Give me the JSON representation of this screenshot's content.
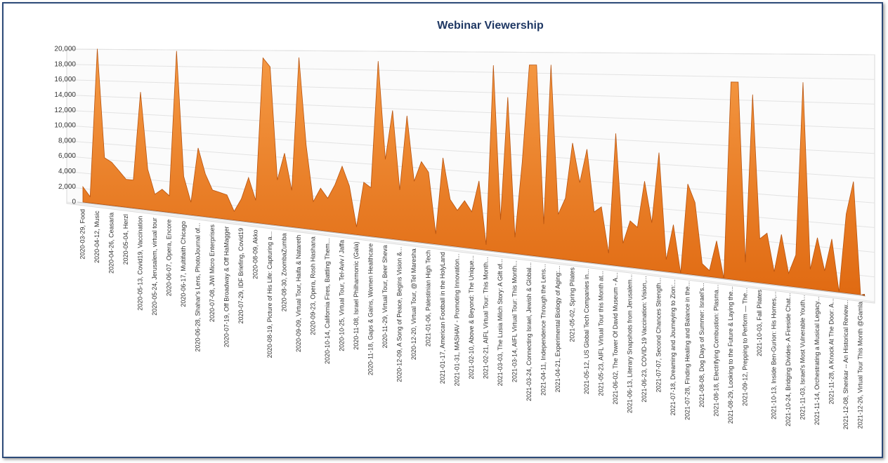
{
  "chart_data": {
    "type": "area",
    "title": "Webinar  Viewership",
    "categories": [
      "2020-03-29, Food",
      null,
      "2020-04-12, Music",
      null,
      "2020-04-26, Ceasaria",
      null,
      "2020-05-04, Herzl",
      null,
      "2020-05-13, Covid19, Vaccination",
      null,
      "2020-05-24, Jerusalem, virtual tour",
      null,
      "2020-06-07, Opera, Encore",
      null,
      "2020-06-17, Multifaith Chicago",
      null,
      "2020-06-28, Shahar's Lens, PhotoJournal of...",
      null,
      "2020-07-08, JWI Micro Enterprises",
      null,
      "2020-07-19, Off Broadway & Off HaMagger",
      null,
      "2020-07-29, IDF Briefing, Covid19",
      null,
      "2020-08-09, Akko",
      null,
      "2020-08-19, Picture of His Life: Capturing a...",
      null,
      "2020-08-30, ZoombaZumba",
      null,
      "2020-09-09, Virtual Tour, Haifa & Natareth",
      null,
      "2020-09-23, Opera, Rosh Hashana",
      null,
      "2020-10-14, California Fires, Battling Them...",
      null,
      "2020-10-25, Virtual Tour, Tel-Aviv / Jaffa",
      null,
      "2020-11-08, Israel Philharmonic (Gala)",
      null,
      "2020-11-18, Gaps & Gains, Women Healthcare",
      null,
      "2020-11-29, Virtual Tour, Beer Sheva",
      null,
      "2020-12-09, A Song of Peace, Begins Vision &...",
      null,
      "2020-12-20, Virtual Tour, @Tel Maresha",
      null,
      "2021-01-06, Palestinian High Tech",
      null,
      "2021-01-17, American Football in the HolyLand",
      null,
      "2021-01-31, MASHAV - Promoting Innovation...",
      null,
      "2021-02-10, Above & Beyond: The Unique...",
      null,
      "2021-02-21, AIFL Virtual Tour: This Month...",
      null,
      "2021-03-03, The Lusia Milch Story: A Gift of...",
      null,
      "2021-03-14, AIFL Virtual Tour: This Month...",
      null,
      "2021-03-24, Connecting Israel, Jewish & Global...",
      null,
      "2021-04-11, Independence Through the Lens...",
      null,
      "2021-04-21, Experimental Biology of Aging:...",
      null,
      "2021-05-02, Spring Pilates",
      null,
      "2021-05-12, US Global Tech Companies in...",
      null,
      "2021-05-23, AIFL Virtual Tour this Month at...",
      null,
      "2021-06-02, The Tower Of David Museum - A...",
      null,
      "2021-06-13, Literary Snapshots from Jerusalem...",
      null,
      "2021-06-23, COVID-19 Vaccination: Vision,...",
      null,
      "2021-07-07, Second Chances Strength...",
      null,
      "2021-07-18, Dreaming and Journeying to Zion:...",
      null,
      "2021-07-28, Finding Healing and Balance in the...",
      null,
      "2021-08-08, Dog Days of Summer: Israel's...",
      null,
      "2021-08-18, Electrifying Combustion: Plasma...",
      null,
      "2021-08-29, Looking to the Future & Laying the...",
      null,
      "2021-09-12, Prepping to Perform — The...",
      null,
      "2021-10-03, Fall Pilates",
      null,
      "2021-10-13, Inside Ben-Gurion: His Homes,...",
      null,
      "2021-10-24, Bridging Divides- A Fireside Chat...",
      null,
      "2021-11-03, Israel's Most Vulnerable Youth...",
      null,
      "2021-11-14, Orchestrating a Musical Legacy...",
      null,
      "2021-11-28, A Knock At The Door: A...",
      null,
      "2021-12-08, Shenkar -- An Historical Review...",
      null,
      "2021-12-26, Virtual Tour This Month @Gamla"
    ],
    "values": [
      2000,
      800,
      20000,
      6000,
      5500,
      4500,
      3500,
      3500,
      14500,
      5000,
      2000,
      2700,
      2000,
      19500,
      4500,
      1500,
      8000,
      5000,
      3200,
      3000,
      2800,
      1000,
      2500,
      5000,
      2500,
      18500,
      17500,
      5000,
      8000,
      4000,
      18500,
      9000,
      3000,
      4500,
      3500,
      5000,
      7000,
      5000,
      800,
      5500,
      5000,
      18000,
      8000,
      13000,
      5000,
      12500,
      6000,
      8000,
      7000,
      1000,
      8500,
      4500,
      3500,
      4500,
      3500,
      6500,
      500,
      17500,
      3000,
      14500,
      1500,
      8500,
      17500,
      17500,
      3000,
      17500,
      4000,
      5500,
      10500,
      7000,
      10000,
      4500,
      5000,
      1000,
      11500,
      2000,
      4000,
      3500,
      7500,
      4000,
      10000,
      1000,
      4000,
      0,
      7500,
      6000,
      1000,
      500,
      3000,
      0,
      16000,
      16000,
      1500,
      15000,
      3500,
      4000,
      1000,
      4000,
      1000,
      2500,
      16000,
      1500,
      4000,
      1500,
      4000,
      0,
      6000,
      8500,
      0
    ],
    "color": "#f07d1e",
    "ylim": [
      0,
      20000
    ],
    "yticks": [
      0,
      {
        "value": 2000,
        "label": "2,000"
      },
      {
        "value": 4000,
        "label": "4,000"
      },
      {
        "value": 6000,
        "label": "6,000"
      },
      {
        "value": 8000,
        "label": "8,000"
      },
      {
        "value": 10000,
        "label": "10,000"
      },
      {
        "value": 12000,
        "label": "12,000"
      },
      {
        "value": 14000,
        "label": "14,000"
      },
      {
        "value": 16000,
        "label": "16,000"
      },
      {
        "value": 18000,
        "label": "18,000"
      },
      {
        "value": 20000,
        "label": "20,000"
      }
    ],
    "grid": true
  }
}
